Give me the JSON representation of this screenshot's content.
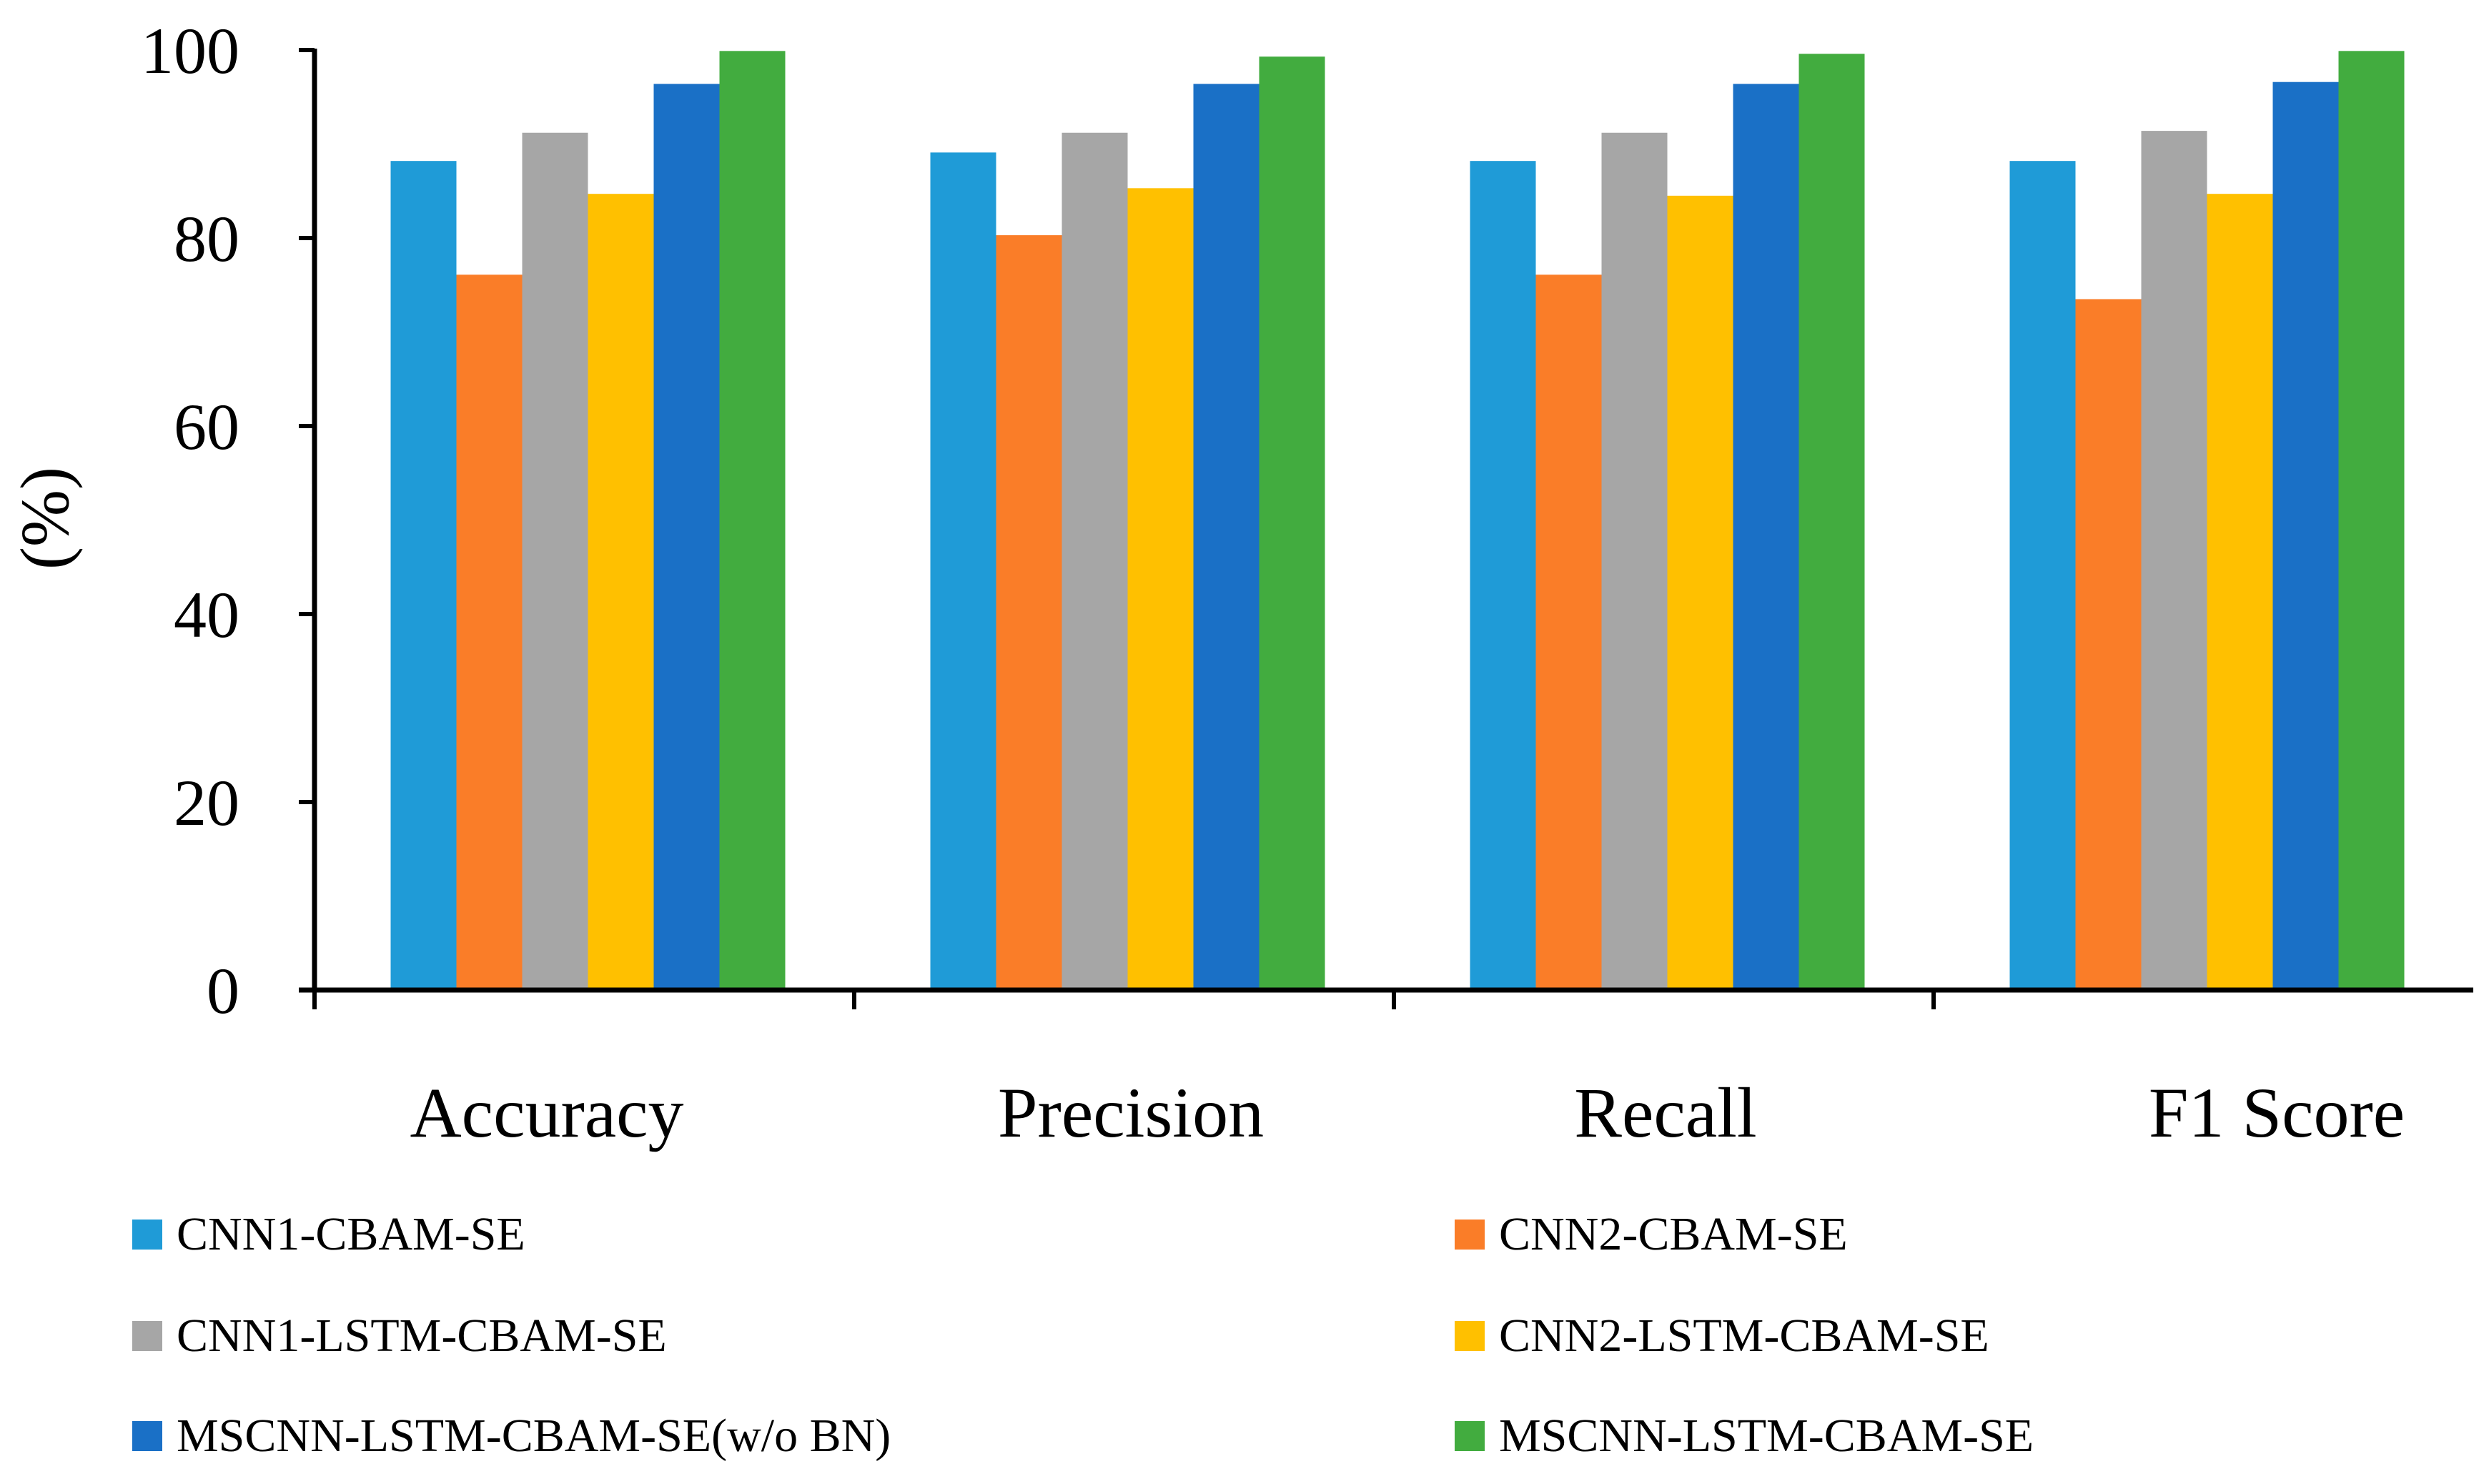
{
  "chart_data": {
    "type": "bar",
    "title": "",
    "xlabel": "",
    "ylabel": "(%)",
    "ylim": [
      0,
      100
    ],
    "yticks": [
      0,
      20,
      40,
      60,
      80,
      100
    ],
    "grid": false,
    "legend_position": "bottom",
    "categories": [
      "Accuracy",
      "Precision",
      "Recall",
      "F1 Score"
    ],
    "series": [
      {
        "name": "CNN1-CBAM-SE",
        "color": "#1f9bd7",
        "values": [
          88.2,
          89.1,
          88.2,
          88.2
        ]
      },
      {
        "name": "CNN2-CBAM-SE",
        "color": "#fa7d28",
        "values": [
          76.1,
          80.3,
          76.1,
          73.5
        ]
      },
      {
        "name": "CNN1-LSTM-CBAM-SE",
        "color": "#a6a6a6",
        "values": [
          91.2,
          91.2,
          91.2,
          91.4
        ]
      },
      {
        "name": "CNN2-LSTM-CBAM-SE",
        "color": "#ffc000",
        "values": [
          84.7,
          85.3,
          84.5,
          84.7
        ]
      },
      {
        "name": "MSCNN-LSTM-CBAM-SE(w/o BN)",
        "color": "#1a70c6",
        "values": [
          96.4,
          96.4,
          96.4,
          96.6
        ]
      },
      {
        "name": "MSCNN-LSTM-CBAM-SE",
        "color": "#42ac3f",
        "values": [
          99.9,
          99.3,
          99.6,
          99.9
        ]
      }
    ]
  }
}
